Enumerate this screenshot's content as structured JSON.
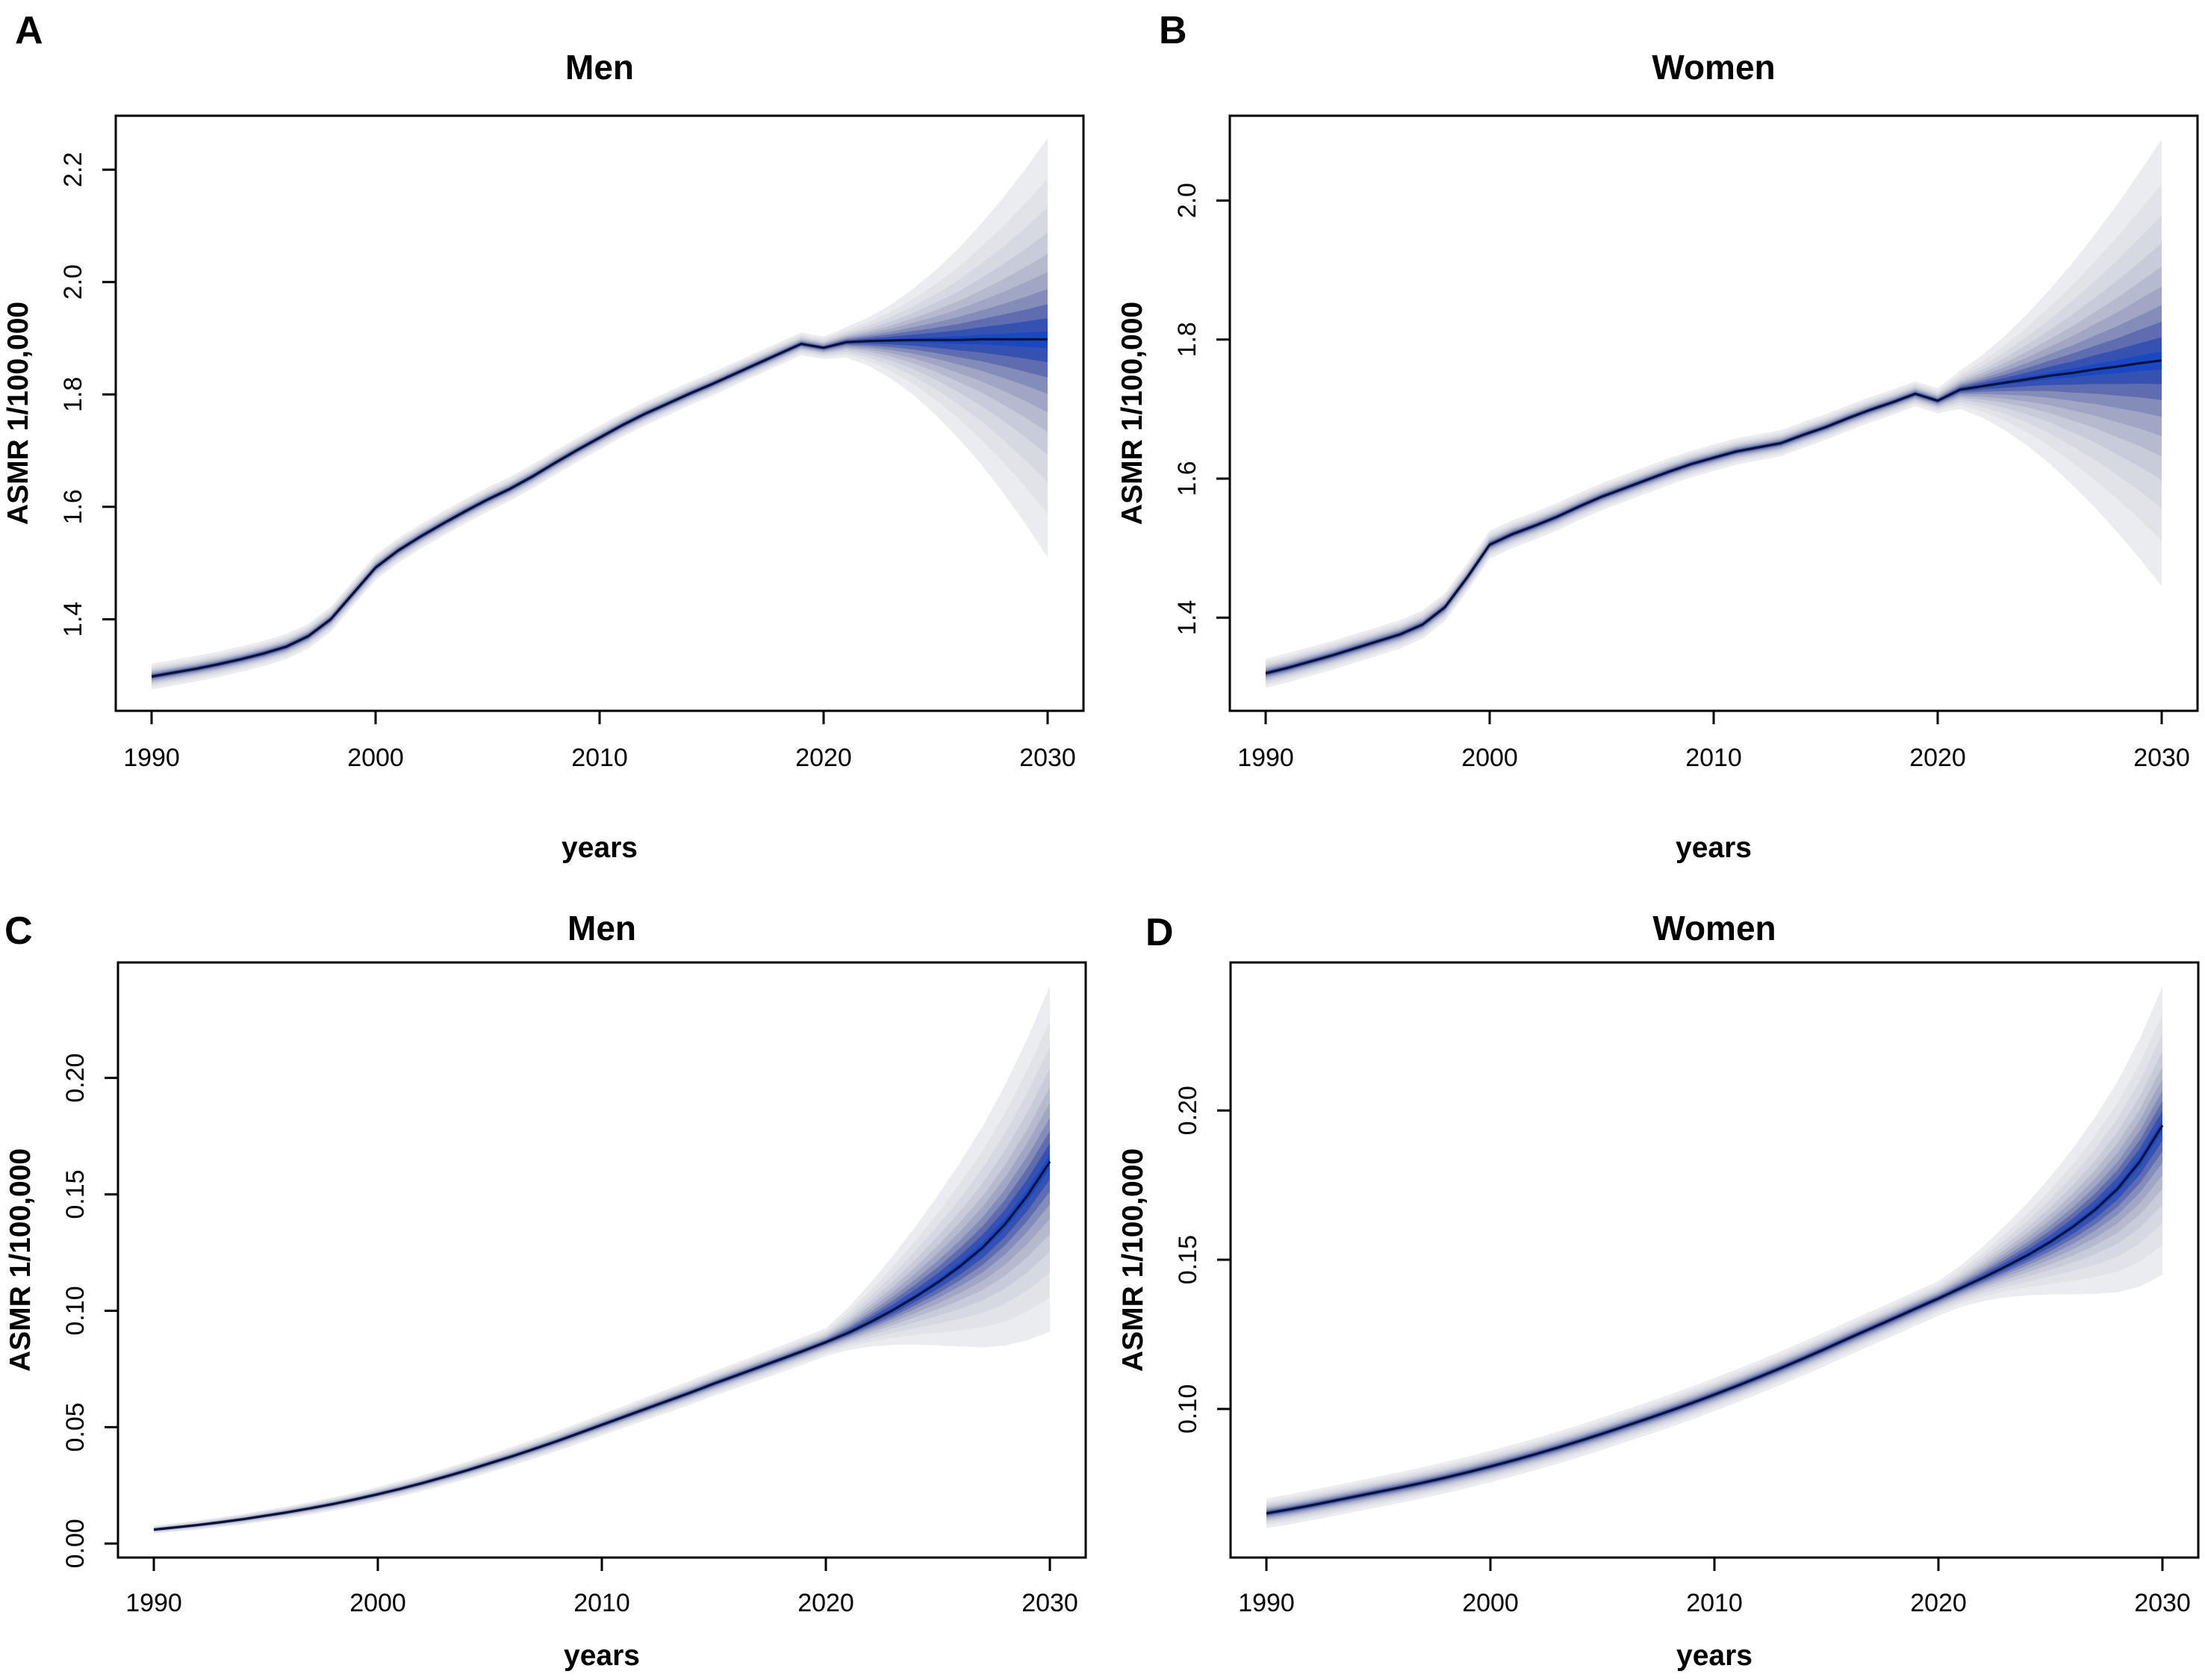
{
  "figure": {
    "background": "#ffffff",
    "axis_color": "#000000",
    "text_color": "#000000",
    "median_line_color": "#081238",
    "fan_band_fractions": [
      1.0,
      0.8,
      0.655,
      0.53,
      0.425,
      0.335,
      0.25,
      0.175,
      0.105,
      0.04
    ],
    "fan_colors_outer_to_inner": [
      "#EBECEF",
      "#E2E3E8",
      "#D6D8E2",
      "#C8CBD9",
      "#B6BACF",
      "#A0A6C4",
      "#848DB9",
      "#5F6CB0",
      "#3552B2",
      "#1A48C4"
    ]
  },
  "chart_data": [
    {
      "id": "A",
      "type": "area",
      "subtype": "fan-projection",
      "panel_label": "A",
      "title": "Men",
      "xlabel": "years",
      "ylabel": "ASMR 1/100,000",
      "xlim": [
        1988.4,
        2031.6
      ],
      "ylim": [
        1.237,
        2.296
      ],
      "xticks": [
        1990,
        2000,
        2010,
        2020,
        2030
      ],
      "xtick_labels": [
        "1990",
        "2000",
        "2010",
        "2020",
        "2030"
      ],
      "ytick_values": [
        1.4,
        1.6,
        1.8,
        2.0,
        2.2
      ],
      "ytick_labels": [
        "1.4",
        "1.6",
        "1.8",
        "2.0",
        "2.2"
      ],
      "years": [
        1990,
        1991,
        1992,
        1993,
        1994,
        1995,
        1996,
        1997,
        1998,
        1999,
        2000,
        2001,
        2002,
        2003,
        2004,
        2005,
        2006,
        2007,
        2008,
        2009,
        2010,
        2011,
        2012,
        2013,
        2014,
        2015,
        2016,
        2017,
        2018,
        2019,
        2020,
        2021,
        2022,
        2023,
        2024,
        2025,
        2026,
        2027,
        2028,
        2029,
        2030
      ],
      "median": [
        1.298,
        1.305,
        1.312,
        1.32,
        1.329,
        1.339,
        1.351,
        1.37,
        1.4,
        1.446,
        1.492,
        1.522,
        1.547,
        1.57,
        1.592,
        1.613,
        1.632,
        1.654,
        1.678,
        1.701,
        1.723,
        1.745,
        1.765,
        1.783,
        1.801,
        1.818,
        1.836,
        1.854,
        1.872,
        1.89,
        1.883,
        1.893,
        1.895,
        1.896,
        1.897,
        1.897,
        1.897,
        1.898,
        1.898,
        1.898,
        1.898
      ],
      "projection_start_year": 2020,
      "observed_halo_halfwidth": [
        0.023,
        0.02
      ],
      "fan_2030_upper_offset": 0.358,
      "fan_2030_lower_offset": 0.388,
      "fan_growth_power_upper": 1.7,
      "fan_growth_power_lower": 1.7
    },
    {
      "id": "B",
      "type": "area",
      "subtype": "fan-projection",
      "panel_label": "B",
      "title": "Women",
      "xlabel": "years",
      "ylabel": "ASMR 1/100,000",
      "xlim": [
        1988.4,
        2031.6
      ],
      "ylim": [
        1.266,
        2.122
      ],
      "xticks": [
        1990,
        2000,
        2010,
        2020,
        2030
      ],
      "xtick_labels": [
        "1990",
        "2000",
        "2010",
        "2020",
        "2030"
      ],
      "ytick_values": [
        1.4,
        1.6,
        1.8,
        2.0
      ],
      "ytick_labels": [
        "1.4",
        "1.6",
        "1.8",
        "2.0"
      ],
      "years": [
        1990,
        1991,
        1992,
        1993,
        1994,
        1995,
        1996,
        1997,
        1998,
        1999,
        2000,
        2001,
        2002,
        2003,
        2004,
        2005,
        2006,
        2007,
        2008,
        2009,
        2010,
        2011,
        2012,
        2013,
        2014,
        2015,
        2016,
        2017,
        2018,
        2019,
        2020,
        2021,
        2022,
        2023,
        2024,
        2025,
        2026,
        2027,
        2028,
        2029,
        2030
      ],
      "median": [
        1.32,
        1.328,
        1.337,
        1.346,
        1.356,
        1.366,
        1.376,
        1.39,
        1.415,
        1.458,
        1.505,
        1.52,
        1.532,
        1.545,
        1.56,
        1.574,
        1.586,
        1.598,
        1.61,
        1.621,
        1.63,
        1.639,
        1.645,
        1.651,
        1.663,
        1.674,
        1.687,
        1.699,
        1.71,
        1.722,
        1.712,
        1.728,
        1.733,
        1.738,
        1.743,
        1.748,
        1.752,
        1.757,
        1.761,
        1.766,
        1.77
      ],
      "projection_start_year": 2020,
      "observed_halo_halfwidth": [
        0.021,
        0.018
      ],
      "fan_2030_upper_offset": 0.318,
      "fan_2030_lower_offset": 0.325,
      "fan_growth_power_upper": 1.5,
      "fan_growth_power_lower": 1.5
    },
    {
      "id": "C",
      "type": "area",
      "subtype": "fan-projection",
      "panel_label": "C",
      "title": "Men",
      "xlabel": "years",
      "ylabel": "ASMR 1/100,000",
      "xlim": [
        1988.4,
        2031.6
      ],
      "ylim": [
        -0.006,
        0.2496
      ],
      "xticks": [
        1990,
        2000,
        2010,
        2020,
        2030
      ],
      "xtick_labels": [
        "1990",
        "2000",
        "2010",
        "2020",
        "2030"
      ],
      "ytick_values": [
        0.0,
        0.05,
        0.1,
        0.15,
        0.2
      ],
      "ytick_labels": [
        "0.00",
        "0.05",
        "0.10",
        "0.15",
        "0.20"
      ],
      "years": [
        1990,
        1991,
        1992,
        1993,
        1994,
        1995,
        1996,
        1997,
        1998,
        1999,
        2000,
        2001,
        2002,
        2003,
        2004,
        2005,
        2006,
        2007,
        2008,
        2009,
        2010,
        2011,
        2012,
        2013,
        2014,
        2015,
        2016,
        2017,
        2018,
        2019,
        2020,
        2021,
        2022,
        2023,
        2024,
        2025,
        2026,
        2027,
        2028,
        2029,
        2030
      ],
      "median": [
        0.006,
        0.007,
        0.008,
        0.0092,
        0.0105,
        0.012,
        0.0135,
        0.0152,
        0.017,
        0.019,
        0.0212,
        0.0235,
        0.026,
        0.0287,
        0.0315,
        0.0345,
        0.0375,
        0.0407,
        0.044,
        0.0475,
        0.051,
        0.0545,
        0.058,
        0.0615,
        0.065,
        0.0687,
        0.0722,
        0.0757,
        0.0792,
        0.0828,
        0.0865,
        0.0905,
        0.0952,
        0.1003,
        0.106,
        0.1122,
        0.1192,
        0.1272,
        0.1372,
        0.1495,
        0.164
      ],
      "projection_start_year": 2020,
      "observed_halo_halfwidth": [
        0.0017,
        0.006
      ],
      "fan_2030_upper_offset": 0.0754,
      "fan_2030_lower_offset": 0.073,
      "fan_growth_power_upper": 1.15,
      "fan_growth_power_lower": 1.67
    },
    {
      "id": "D",
      "type": "area",
      "subtype": "fan-projection",
      "panel_label": "D",
      "title": "Women",
      "xlabel": "years",
      "ylabel": "ASMR 1/100,000",
      "xlim": [
        1988.4,
        2031.6
      ],
      "ylim": [
        0.0502,
        0.2496
      ],
      "xticks": [
        1990,
        2000,
        2010,
        2020,
        2030
      ],
      "xtick_labels": [
        "1990",
        "2000",
        "2010",
        "2020",
        "2030"
      ],
      "ytick_values": [
        0.1,
        0.15,
        0.2
      ],
      "ytick_labels": [
        "0.10",
        "0.15",
        "0.20"
      ],
      "years": [
        1990,
        1991,
        1992,
        1993,
        1994,
        1995,
        1996,
        1997,
        1998,
        1999,
        2000,
        2001,
        2002,
        2003,
        2004,
        2005,
        2006,
        2007,
        2008,
        2009,
        2010,
        2011,
        2012,
        2013,
        2014,
        2015,
        2016,
        2017,
        2018,
        2019,
        2020,
        2021,
        2022,
        2023,
        2024,
        2025,
        2026,
        2027,
        2028,
        2029,
        2030
      ],
      "median": [
        0.065,
        0.0663,
        0.0677,
        0.0692,
        0.0707,
        0.0722,
        0.0737,
        0.0753,
        0.077,
        0.0788,
        0.0807,
        0.0827,
        0.0848,
        0.087,
        0.0893,
        0.0917,
        0.0942,
        0.0967,
        0.0993,
        0.102,
        0.1048,
        0.1077,
        0.1107,
        0.1138,
        0.117,
        0.1203,
        0.1237,
        0.127,
        0.1303,
        0.1337,
        0.137,
        0.1405,
        0.144,
        0.1477,
        0.1516,
        0.156,
        0.161,
        0.1668,
        0.1738,
        0.183,
        0.195
      ],
      "projection_start_year": 2020,
      "observed_halo_halfwidth": [
        0.005,
        0.0058
      ],
      "fan_2030_upper_offset": 0.0466,
      "fan_2030_lower_offset": 0.05,
      "fan_growth_power_upper": 1.35,
      "fan_growth_power_lower": 1.9
    }
  ]
}
